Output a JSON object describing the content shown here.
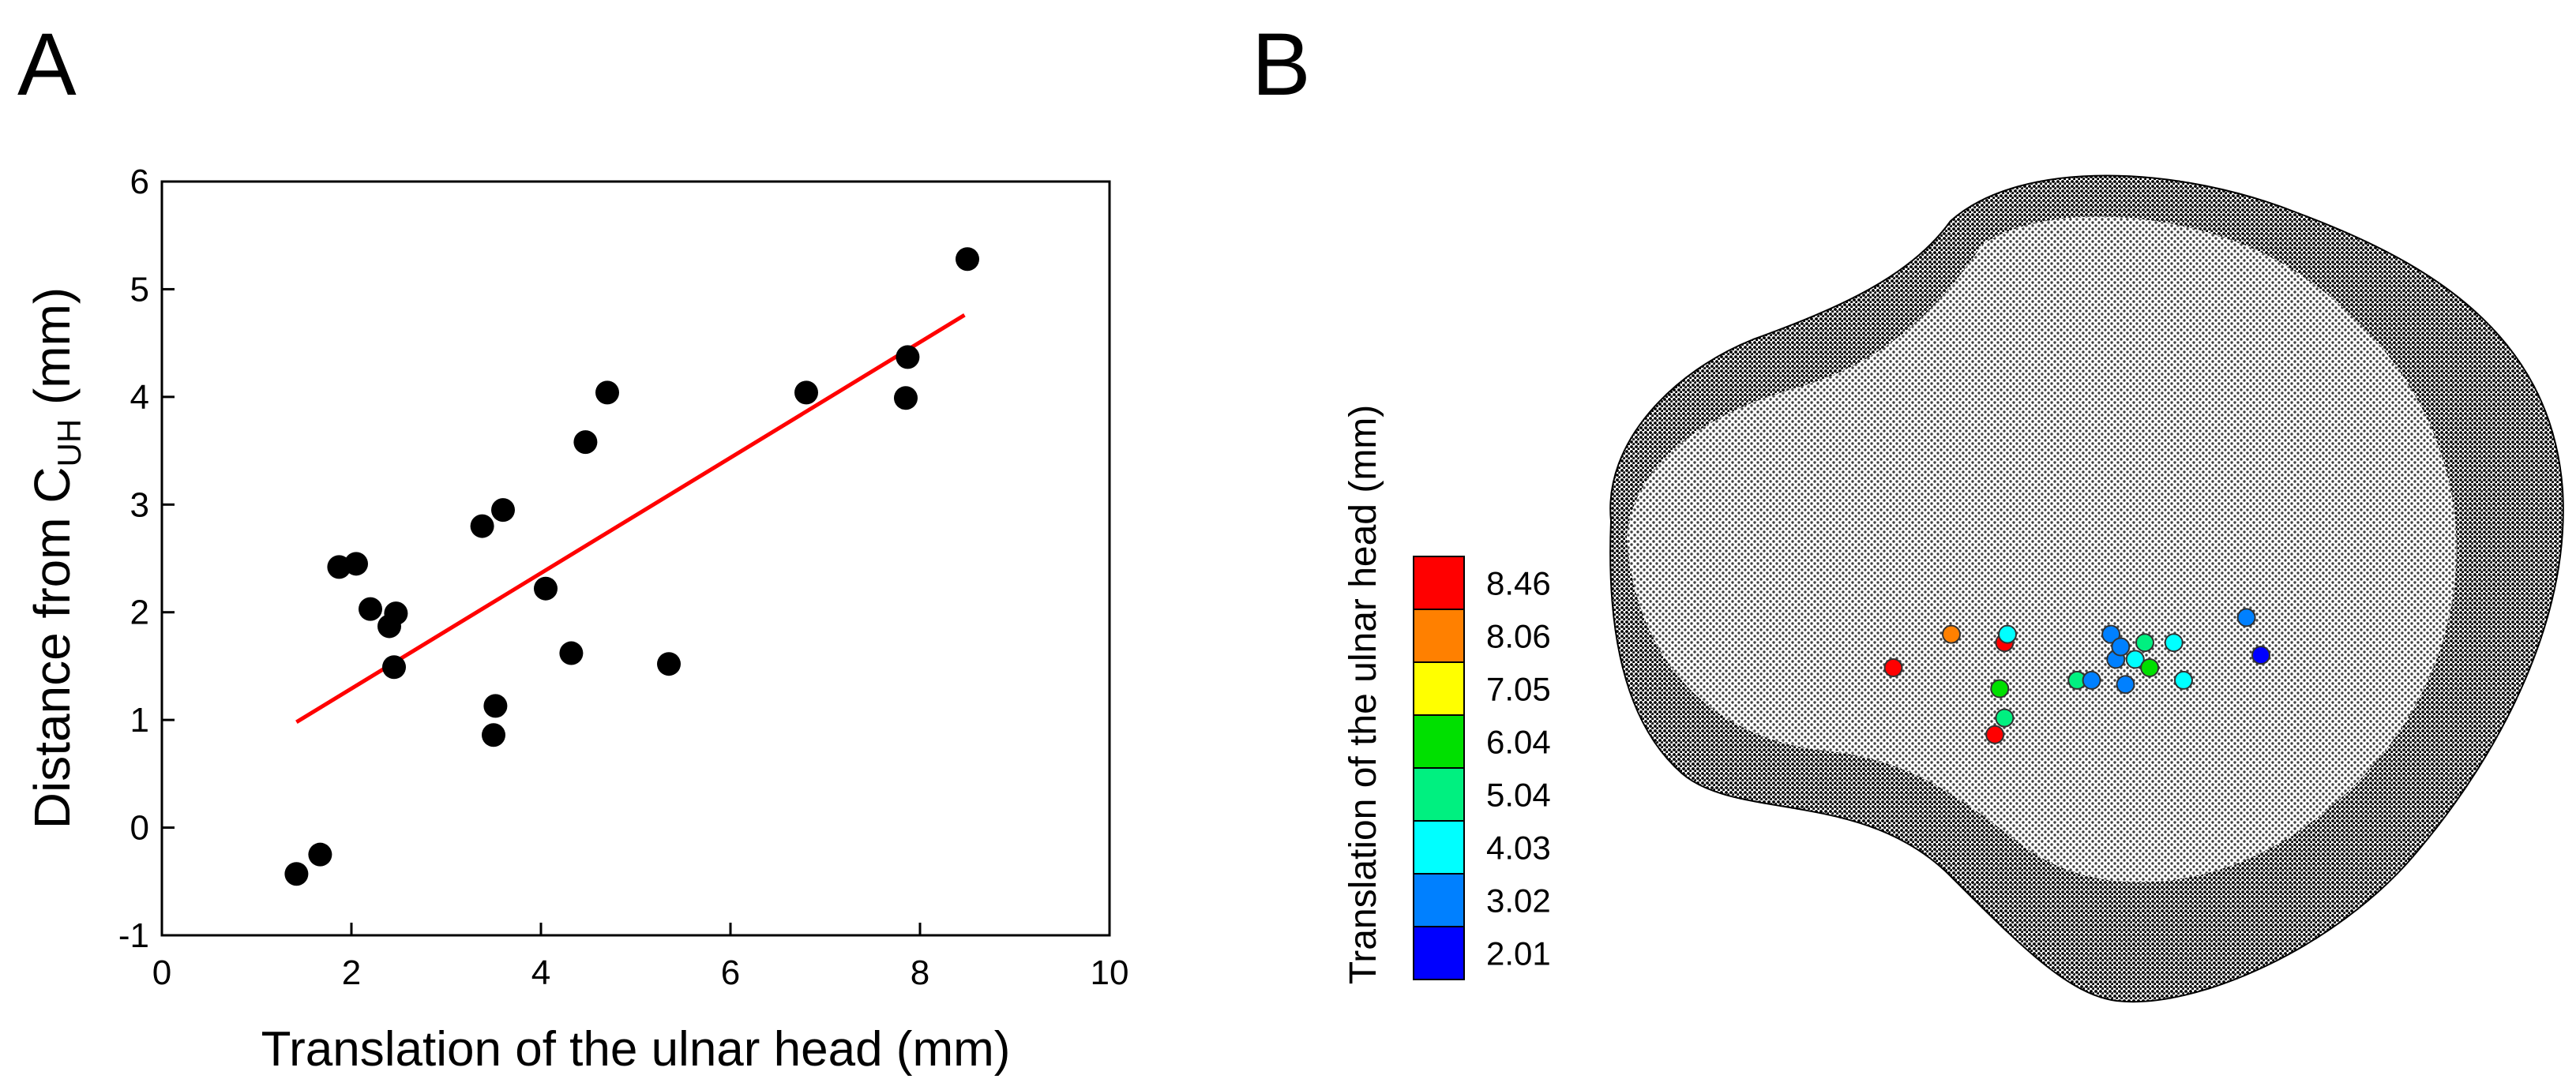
{
  "panels": {
    "a_label": "A",
    "b_label": "B"
  },
  "chart_data": [
    {
      "type": "scatter",
      "panel": "A",
      "title": "",
      "xlabel": "Translation of the ulnar head (mm)",
      "ylabel_prefix": "Distance from C",
      "ylabel_sub": "UH",
      "ylabel_suffix": " (mm)",
      "xlim": [
        0,
        10
      ],
      "ylim": [
        -1,
        6
      ],
      "xticks": [
        0,
        2,
        4,
        6,
        8,
        10
      ],
      "yticks": [
        -1,
        0,
        1,
        2,
        3,
        4,
        5,
        6
      ],
      "grid": false,
      "points_color": "#000000",
      "points": [
        {
          "x": 1.42,
          "y": -0.43
        },
        {
          "x": 1.67,
          "y": -0.25
        },
        {
          "x": 1.87,
          "y": 2.42
        },
        {
          "x": 2.05,
          "y": 2.45
        },
        {
          "x": 2.2,
          "y": 2.03
        },
        {
          "x": 2.4,
          "y": 1.87
        },
        {
          "x": 2.47,
          "y": 1.99
        },
        {
          "x": 2.45,
          "y": 1.49
        },
        {
          "x": 3.38,
          "y": 2.8
        },
        {
          "x": 3.6,
          "y": 2.95
        },
        {
          "x": 3.52,
          "y": 1.13
        },
        {
          "x": 3.5,
          "y": 0.86
        },
        {
          "x": 4.05,
          "y": 2.22
        },
        {
          "x": 4.32,
          "y": 1.62
        },
        {
          "x": 4.47,
          "y": 3.58
        },
        {
          "x": 4.7,
          "y": 4.04
        },
        {
          "x": 5.35,
          "y": 1.52
        },
        {
          "x": 6.8,
          "y": 4.04
        },
        {
          "x": 7.87,
          "y": 4.37
        },
        {
          "x": 7.85,
          "y": 3.99
        },
        {
          "x": 8.5,
          "y": 5.28
        }
      ],
      "fit_line": {
        "color": "#ff0000",
        "x": [
          1.42,
          8.47
        ],
        "y": [
          0.98,
          4.76
        ]
      }
    },
    {
      "type": "scatter",
      "panel": "B",
      "title": "",
      "legend_title": "Translation of the ulnar head (mm)",
      "colorbar": [
        {
          "label": "8.46",
          "color": "#ff0000"
        },
        {
          "label": "8.06",
          "color": "#ff8000"
        },
        {
          "label": "7.05",
          "color": "#ffff00"
        },
        {
          "label": "6.04",
          "color": "#00e000"
        },
        {
          "label": "5.04",
          "color": "#00f080"
        },
        {
          "label": "4.03",
          "color": "#00ffff"
        },
        {
          "label": "3.02",
          "color": "#0080ff"
        },
        {
          "label": "2.01",
          "color": "#0000ff"
        }
      ],
      "markers": [
        {
          "u": 0.3,
          "v": 0.6,
          "value": 8.46
        },
        {
          "u": 0.36,
          "v": 0.56,
          "value": 8.06
        },
        {
          "u": 0.415,
          "v": 0.57,
          "value": 8.46
        },
        {
          "u": 0.405,
          "v": 0.68,
          "value": 8.46
        },
        {
          "u": 0.41,
          "v": 0.625,
          "value": 6.04
        },
        {
          "u": 0.415,
          "v": 0.66,
          "value": 5.04
        },
        {
          "u": 0.418,
          "v": 0.56,
          "value": 4.03
        },
        {
          "u": 0.49,
          "v": 0.615,
          "value": 5.04
        },
        {
          "u": 0.505,
          "v": 0.615,
          "value": 3.02
        },
        {
          "u": 0.525,
          "v": 0.56,
          "value": 3.02
        },
        {
          "u": 0.53,
          "v": 0.59,
          "value": 3.02
        },
        {
          "u": 0.535,
          "v": 0.575,
          "value": 3.02
        },
        {
          "u": 0.54,
          "v": 0.62,
          "value": 3.02
        },
        {
          "u": 0.55,
          "v": 0.59,
          "value": 4.03
        },
        {
          "u": 0.56,
          "v": 0.57,
          "value": 5.04
        },
        {
          "u": 0.565,
          "v": 0.6,
          "value": 6.04
        },
        {
          "u": 0.59,
          "v": 0.57,
          "value": 4.03
        },
        {
          "u": 0.6,
          "v": 0.615,
          "value": 4.03
        },
        {
          "u": 0.665,
          "v": 0.54,
          "value": 3.02
        },
        {
          "u": 0.68,
          "v": 0.585,
          "value": 2.01
        }
      ]
    }
  ]
}
